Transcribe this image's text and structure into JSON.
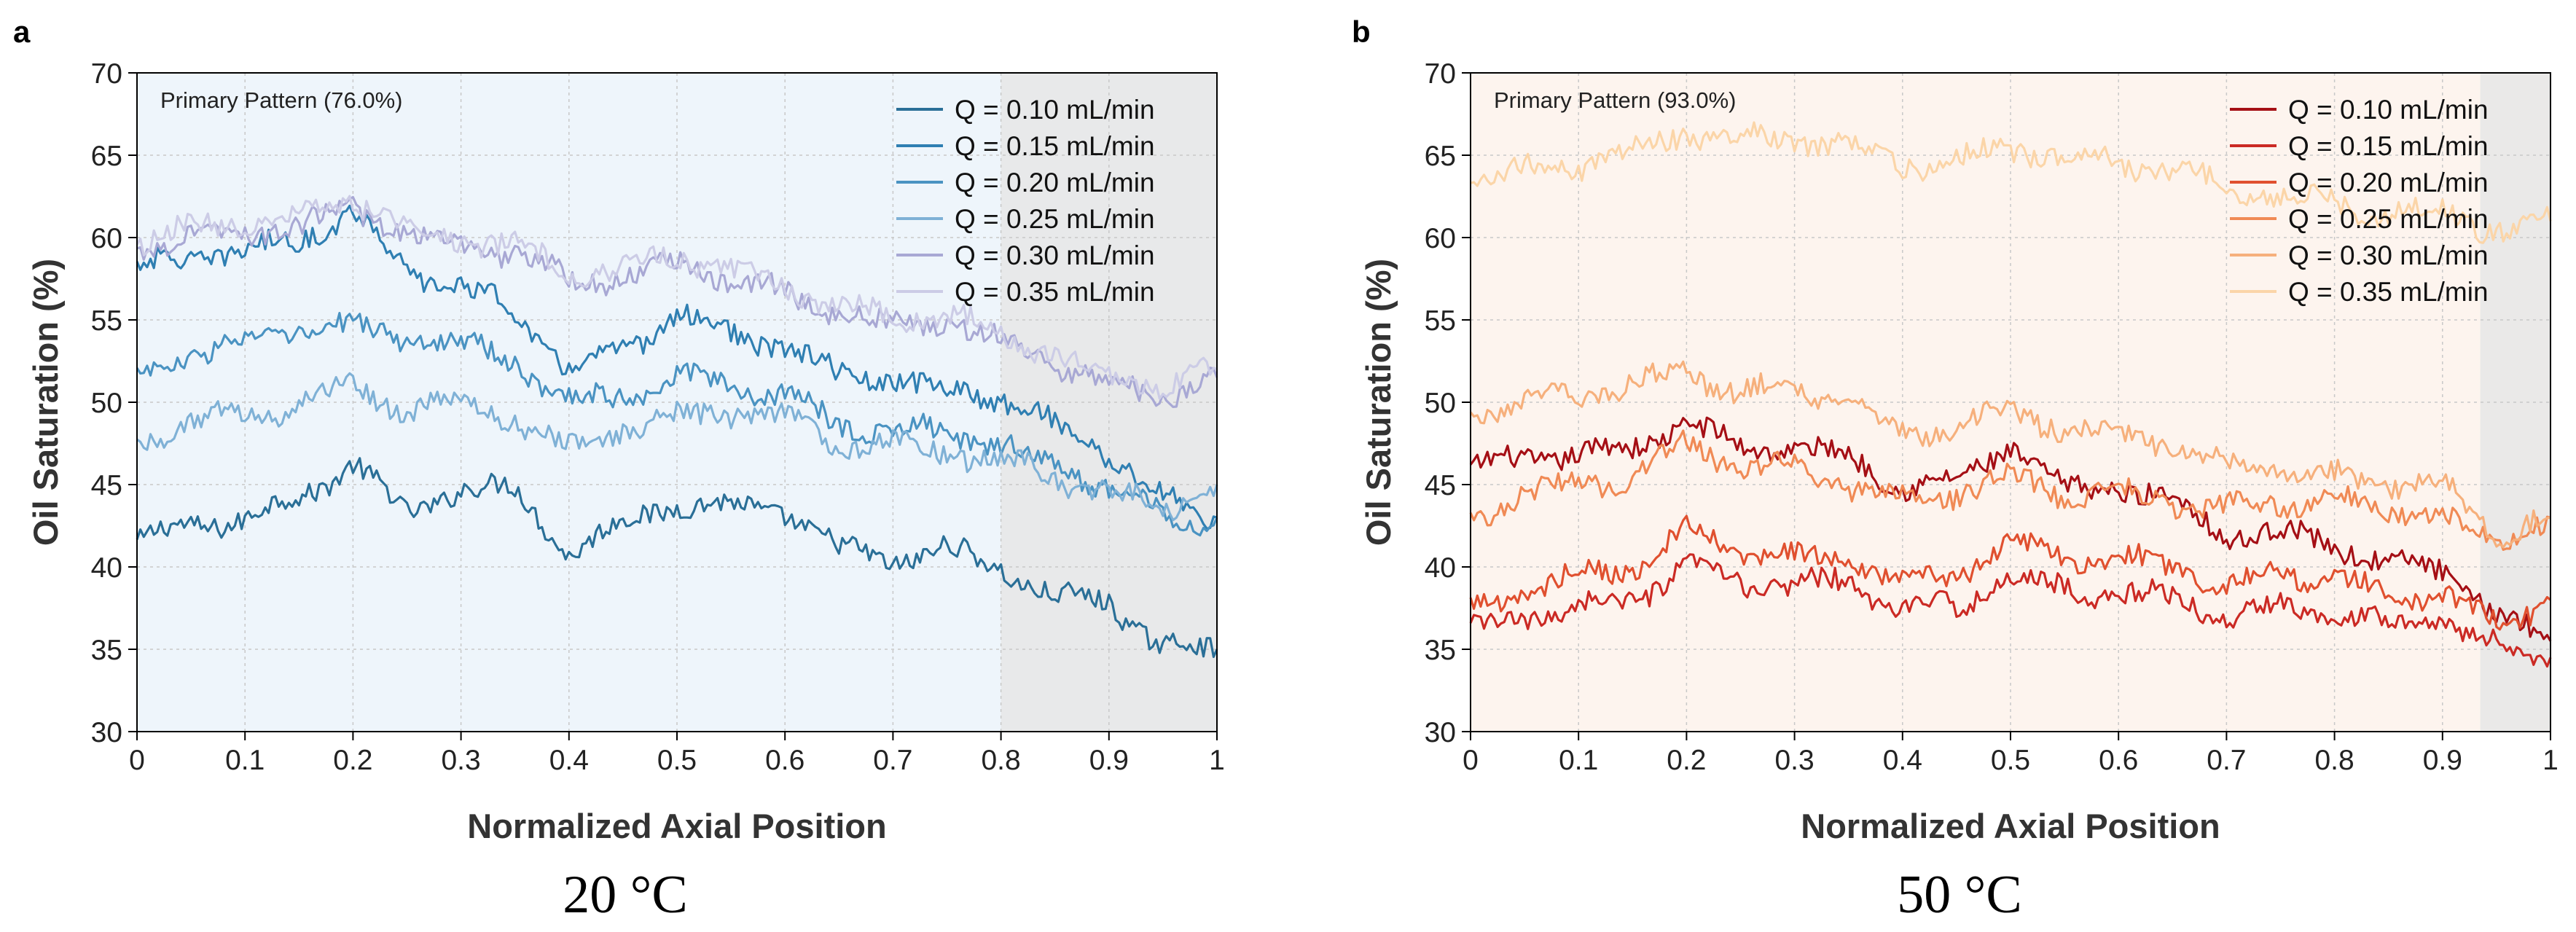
{
  "chart_data": [
    {
      "panel_label": "a",
      "caption": "20 °C",
      "type": "line",
      "title": "",
      "xlabel": "Normalized Axial Position",
      "ylabel": "Oil Saturation (%)",
      "xlim": [
        0,
        1
      ],
      "ylim": [
        30,
        70
      ],
      "xticks": [
        0,
        0.1,
        0.2,
        0.3,
        0.4,
        0.5,
        0.6,
        0.7,
        0.8,
        0.9,
        1
      ],
      "xtick_labels": [
        "0",
        "0.1",
        "0.2",
        "0.3",
        "0.4",
        "0.5",
        "0.6",
        "0.7",
        "0.8",
        "0.9",
        "1"
      ],
      "yticks": [
        30,
        35,
        40,
        45,
        50,
        55,
        60,
        65,
        70
      ],
      "ytick_labels": [
        "30",
        "35",
        "40",
        "45",
        "50",
        "55",
        "60",
        "65",
        "70"
      ],
      "grid": true,
      "legend_position": "top-right",
      "annotation": "Primary Pattern (76.0%)",
      "background_tint": "#eef5fb",
      "shaded_region": {
        "x": [
          0.8,
          1.0
        ],
        "color": "#e6e6e6"
      },
      "x": [
        0,
        0.05,
        0.1,
        0.15,
        0.2,
        0.25,
        0.3,
        0.35,
        0.4,
        0.45,
        0.5,
        0.55,
        0.6,
        0.65,
        0.7,
        0.75,
        0.8,
        0.85,
        0.9,
        0.95,
        1.0
      ],
      "series": [
        {
          "name": "Q = 0.10 mL/min",
          "color": "#2a6f97",
          "values": [
            41.5,
            42.5,
            43,
            44,
            46.5,
            43,
            45,
            44.5,
            41,
            42.5,
            44,
            43.5,
            43.5,
            41,
            40.5,
            41,
            40,
            38,
            38,
            35,
            35
          ]
        },
        {
          "name": "Q = 0.15 mL/min",
          "color": "#2f7fb2",
          "values": [
            58,
            59,
            59,
            60,
            61.5,
            58,
            57,
            55.5,
            52,
            53,
            55.5,
            54,
            53.5,
            51.5,
            51.5,
            50.5,
            50.5,
            48.5,
            47,
            44,
            43
          ]
        },
        {
          "name": "Q = 0.20 mL/min",
          "color": "#4a93c2",
          "values": [
            51.5,
            53,
            53.5,
            54.5,
            54.5,
            54,
            53.5,
            52.5,
            50,
            50.5,
            51.5,
            51,
            50.5,
            48.5,
            48.5,
            48,
            47.5,
            46,
            45,
            43,
            43
          ]
        },
        {
          "name": "Q = 0.25 mL/min",
          "color": "#7fb1d6",
          "values": [
            47.5,
            49,
            49,
            50,
            51,
            49.5,
            50,
            49,
            47,
            48.5,
            49,
            49.5,
            49,
            47.5,
            47.5,
            47,
            46.5,
            45.5,
            44.5,
            43.5,
            45
          ]
        },
        {
          "name": "Q = 0.30 mL/min",
          "color": "#a8a8d4",
          "values": [
            59.5,
            60,
            60.5,
            60.5,
            62,
            60,
            59.5,
            59,
            57.5,
            57.5,
            58.5,
            57.5,
            56.5,
            55.5,
            54.5,
            55,
            53.5,
            52.5,
            51,
            50.5,
            51.5
          ]
        },
        {
          "name": "Q = 0.35 mL/min",
          "color": "#cccce6",
          "values": [
            59.8,
            60.5,
            61,
            61,
            62.5,
            60.5,
            60,
            59.5,
            58,
            58,
            59,
            58,
            57,
            56,
            55,
            55.5,
            54,
            53,
            51.5,
            51,
            52
          ]
        }
      ]
    },
    {
      "panel_label": "b",
      "caption": "50 °C",
      "type": "line",
      "title": "",
      "xlabel": "Normalized Axial Position",
      "ylabel": "Oil Saturation (%)",
      "xlim": [
        0,
        1
      ],
      "ylim": [
        30,
        70
      ],
      "xticks": [
        0,
        0.1,
        0.2,
        0.3,
        0.4,
        0.5,
        0.6,
        0.7,
        0.8,
        0.9,
        1
      ],
      "xtick_labels": [
        "0",
        "0.1",
        "0.2",
        "0.3",
        "0.4",
        "0.5",
        "0.6",
        "0.7",
        "0.8",
        "0.9",
        "1"
      ],
      "yticks": [
        30,
        35,
        40,
        45,
        50,
        55,
        60,
        65,
        70
      ],
      "ytick_labels": [
        "30",
        "35",
        "40",
        "45",
        "50",
        "55",
        "60",
        "65",
        "70"
      ],
      "grid": true,
      "legend_position": "top-right",
      "annotation": "Primary Pattern (93.0%)",
      "background_tint": "#fdf4ee",
      "shaded_region": {
        "x": [
          0.935,
          1.0
        ],
        "color": "#e6e6e6"
      },
      "x": [
        0,
        0.05,
        0.1,
        0.15,
        0.2,
        0.25,
        0.3,
        0.35,
        0.4,
        0.45,
        0.5,
        0.55,
        0.6,
        0.65,
        0.7,
        0.75,
        0.8,
        0.85,
        0.9,
        0.95,
        1.0
      ],
      "series": [
        {
          "name": "Q = 0.10 mL/min",
          "color": "#a50f15",
          "values": [
            46,
            46.5,
            47,
            47,
            49,
            47,
            47.5,
            46.5,
            45,
            45,
            47.5,
            44.5,
            45,
            44,
            42,
            42,
            41.5,
            40,
            40,
            37,
            35.5
          ]
        },
        {
          "name": "Q = 0.15 mL/min",
          "color": "#cb2a24",
          "values": [
            36,
            37,
            37.5,
            38,
            40,
            39,
            39,
            39,
            37.5,
            37.5,
            39.5,
            38.5,
            38.5,
            38,
            37,
            37.5,
            37.5,
            36.5,
            37,
            35,
            34.5
          ]
        },
        {
          "name": "Q = 0.20 mL/min",
          "color": "#e0502f",
          "values": [
            37.5,
            38.5,
            39.5,
            40,
            42,
            41,
            40.5,
            40.5,
            39,
            39.5,
            41.5,
            40.5,
            40.5,
            40,
            39,
            39.5,
            39.5,
            38,
            38.5,
            36.5,
            38
          ]
        },
        {
          "name": "Q = 0.25 mL/min",
          "color": "#f08a55",
          "values": [
            43,
            44.5,
            45,
            45.5,
            47.5,
            46,
            46,
            45,
            44,
            44.5,
            45.5,
            44.5,
            44.5,
            44,
            43.5,
            44,
            44,
            43.5,
            43,
            41.5,
            43
          ]
        },
        {
          "name": "Q = 0.30 mL/min",
          "color": "#f6b07c",
          "values": [
            49.5,
            50,
            50.5,
            51,
            52,
            50.5,
            51,
            50,
            48,
            48.5,
            49.5,
            48.5,
            48,
            47.5,
            46,
            46,
            45.5,
            45,
            45,
            42,
            43
          ]
        },
        {
          "name": "Q = 0.35 mL/min",
          "color": "#fbd5a8",
          "values": [
            63.5,
            64,
            64.5,
            65,
            66.5,
            66,
            66,
            65.5,
            64.5,
            64.5,
            65.5,
            65,
            64.5,
            64,
            63,
            62.5,
            62,
            61.5,
            61.5,
            60.5,
            61
          ]
        }
      ]
    }
  ]
}
